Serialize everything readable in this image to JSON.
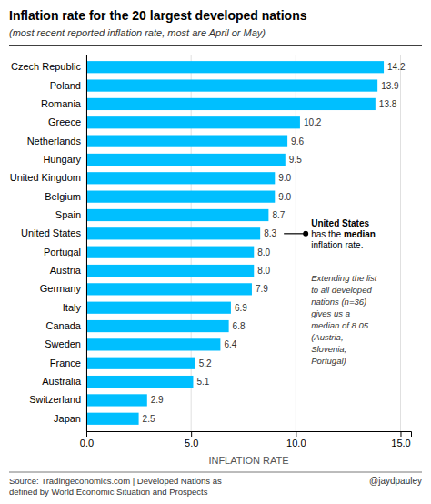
{
  "chart_data": {
    "type": "bar",
    "orientation": "horizontal",
    "title": "Inflation rate for the 20 largest developed nations",
    "subtitle": "(most recent reported inflation rate, most are April or May)",
    "categories": [
      "Czech Republic",
      "Poland",
      "Romania",
      "Greece",
      "Netherlands",
      "Hungary",
      "United Kingdom",
      "Belgium",
      "Spain",
      "United States",
      "Portugal",
      "Austria",
      "Germany",
      "Italy",
      "Canada",
      "Sweden",
      "France",
      "Australia",
      "Switzerland",
      "Japan"
    ],
    "values": [
      14.2,
      13.9,
      13.8,
      10.2,
      9.6,
      9.5,
      9.0,
      9.0,
      8.7,
      8.3,
      8.0,
      8.0,
      7.9,
      6.9,
      6.8,
      6.4,
      5.2,
      5.1,
      2.9,
      2.5
    ],
    "value_labels": [
      "14.2",
      "13.9",
      "13.8",
      "10.2",
      "9.6",
      "9.5",
      "9.0",
      "9.0",
      "8.7",
      "8.3",
      "8.0",
      "8.0",
      "7.9",
      "6.9",
      "6.8",
      "6.4",
      "5.2",
      "5.1",
      "2.9",
      "2.5"
    ],
    "data_labels": true,
    "color": "#00BFFF",
    "grid": true,
    "xlabel": "INFLATION RATE",
    "xlim": [
      0,
      15.5
    ],
    "xticks": [
      {
        "value": 0,
        "label": "0.0"
      },
      {
        "value": 5,
        "label": "5.0"
      },
      {
        "value": 10,
        "label": "10.0"
      },
      {
        "value": 15,
        "label": "15.0"
      }
    ],
    "annotations": [
      "United States",
      "has the",
      "median",
      "inflation rate.",
      "Extending the list",
      "to all developed",
      "nations (n=36)",
      "gives us a",
      "median of 8.05",
      "(Austria,",
      "Slovenia,",
      "Portugal)"
    ],
    "source": [
      "Source: Tradingeconomics.com | Developed Nations as",
      "defined by World Economic Situation and Prospects"
    ],
    "handle": "@jaydpauley"
  }
}
